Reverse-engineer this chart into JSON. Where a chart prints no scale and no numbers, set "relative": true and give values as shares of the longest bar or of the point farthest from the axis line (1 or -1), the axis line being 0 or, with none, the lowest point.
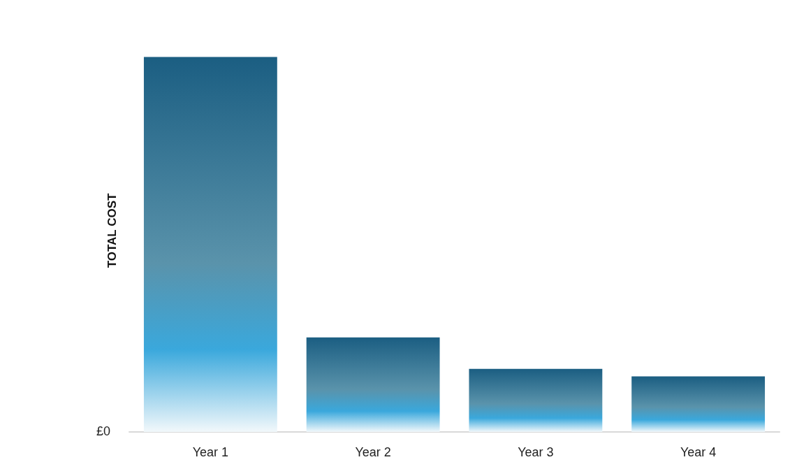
{
  "chart_data": {
    "type": "bar",
    "ylabel": "TOTAL COST",
    "categories": [
      "Year 1",
      "Year 2",
      "Year 3",
      "Year 4"
    ],
    "values": [
      1,
      0.252,
      0.168,
      0.148
    ],
    "color": "#1b5e82",
    "relative": true,
    "annotations": [
      "£0"
    ]
  }
}
